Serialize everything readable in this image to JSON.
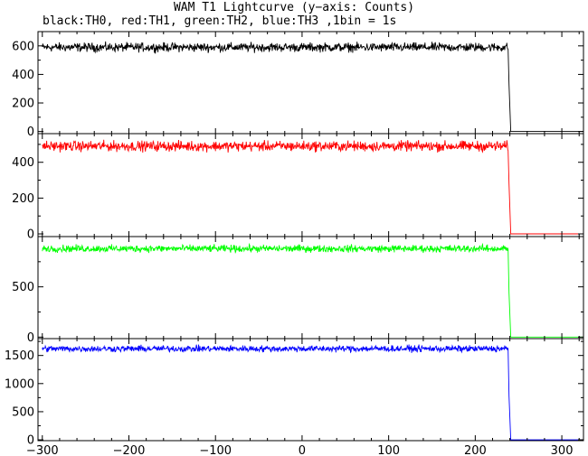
{
  "title": "WAM T1 Lightcurve (y−axis: Counts)",
  "subtitle": "black:TH0, red:TH1, green:TH2, blue:TH3 ,1bin = 1s",
  "chart_data": [
    {
      "type": "line",
      "name": "TH0",
      "color": "#000000",
      "xlim": [
        -305,
        325
      ],
      "ylim": [
        -15,
        700
      ],
      "xticks": [
        -300,
        -200,
        -100,
        0,
        100,
        200,
        300
      ],
      "yticks": [
        0,
        200,
        400,
        600
      ],
      "ytick_labels": [
        "0",
        "200",
        "400",
        "600"
      ],
      "x_tick_labels_shown": false,
      "level": 590,
      "noise": 22,
      "step_start": 238,
      "drop_x": 241,
      "mid_value": 330,
      "end_value": 0,
      "grid": false
    },
    {
      "type": "line",
      "name": "TH1",
      "color": "#ff0000",
      "xlim": [
        -305,
        325
      ],
      "ylim": [
        -15,
        560
      ],
      "xticks": [
        -300,
        -200,
        -100,
        0,
        100,
        200,
        300
      ],
      "yticks": [
        0,
        200,
        400
      ],
      "ytick_labels": [
        "0",
        "200",
        "400"
      ],
      "x_tick_labels_shown": false,
      "level": 490,
      "noise": 20,
      "step_start": 238,
      "drop_x": 241,
      "mid_value": 280,
      "end_value": 0,
      "grid": false
    },
    {
      "type": "line",
      "name": "TH2",
      "color": "#00ff00",
      "xlim": [
        -305,
        325
      ],
      "ylim": [
        -15,
        1000
      ],
      "xticks": [
        -300,
        -200,
        -100,
        0,
        100,
        200,
        300
      ],
      "yticks": [
        0,
        500
      ],
      "ytick_labels": [
        "0",
        "500"
      ],
      "x_tick_labels_shown": false,
      "level": 880,
      "noise": 25,
      "step_start": 238,
      "drop_x": 241,
      "mid_value": 440,
      "end_value": 0,
      "grid": false
    },
    {
      "type": "line",
      "name": "TH3",
      "color": "#0000ff",
      "xlim": [
        -305,
        325
      ],
      "ylim": [
        -15,
        1800
      ],
      "xticks": [
        -300,
        -200,
        -100,
        0,
        100,
        200,
        300
      ],
      "xtick_labels": [
        "−300",
        "−200",
        "−100",
        "0",
        "100",
        "200",
        "300"
      ],
      "yticks": [
        0,
        500,
        1000,
        1500
      ],
      "ytick_labels": [
        "0",
        "500",
        "1000",
        "1500"
      ],
      "x_tick_labels_shown": true,
      "level": 1620,
      "noise": 40,
      "step_start": 238,
      "drop_x": 241,
      "mid_value": 780,
      "end_value": 0,
      "grid": false
    }
  ]
}
